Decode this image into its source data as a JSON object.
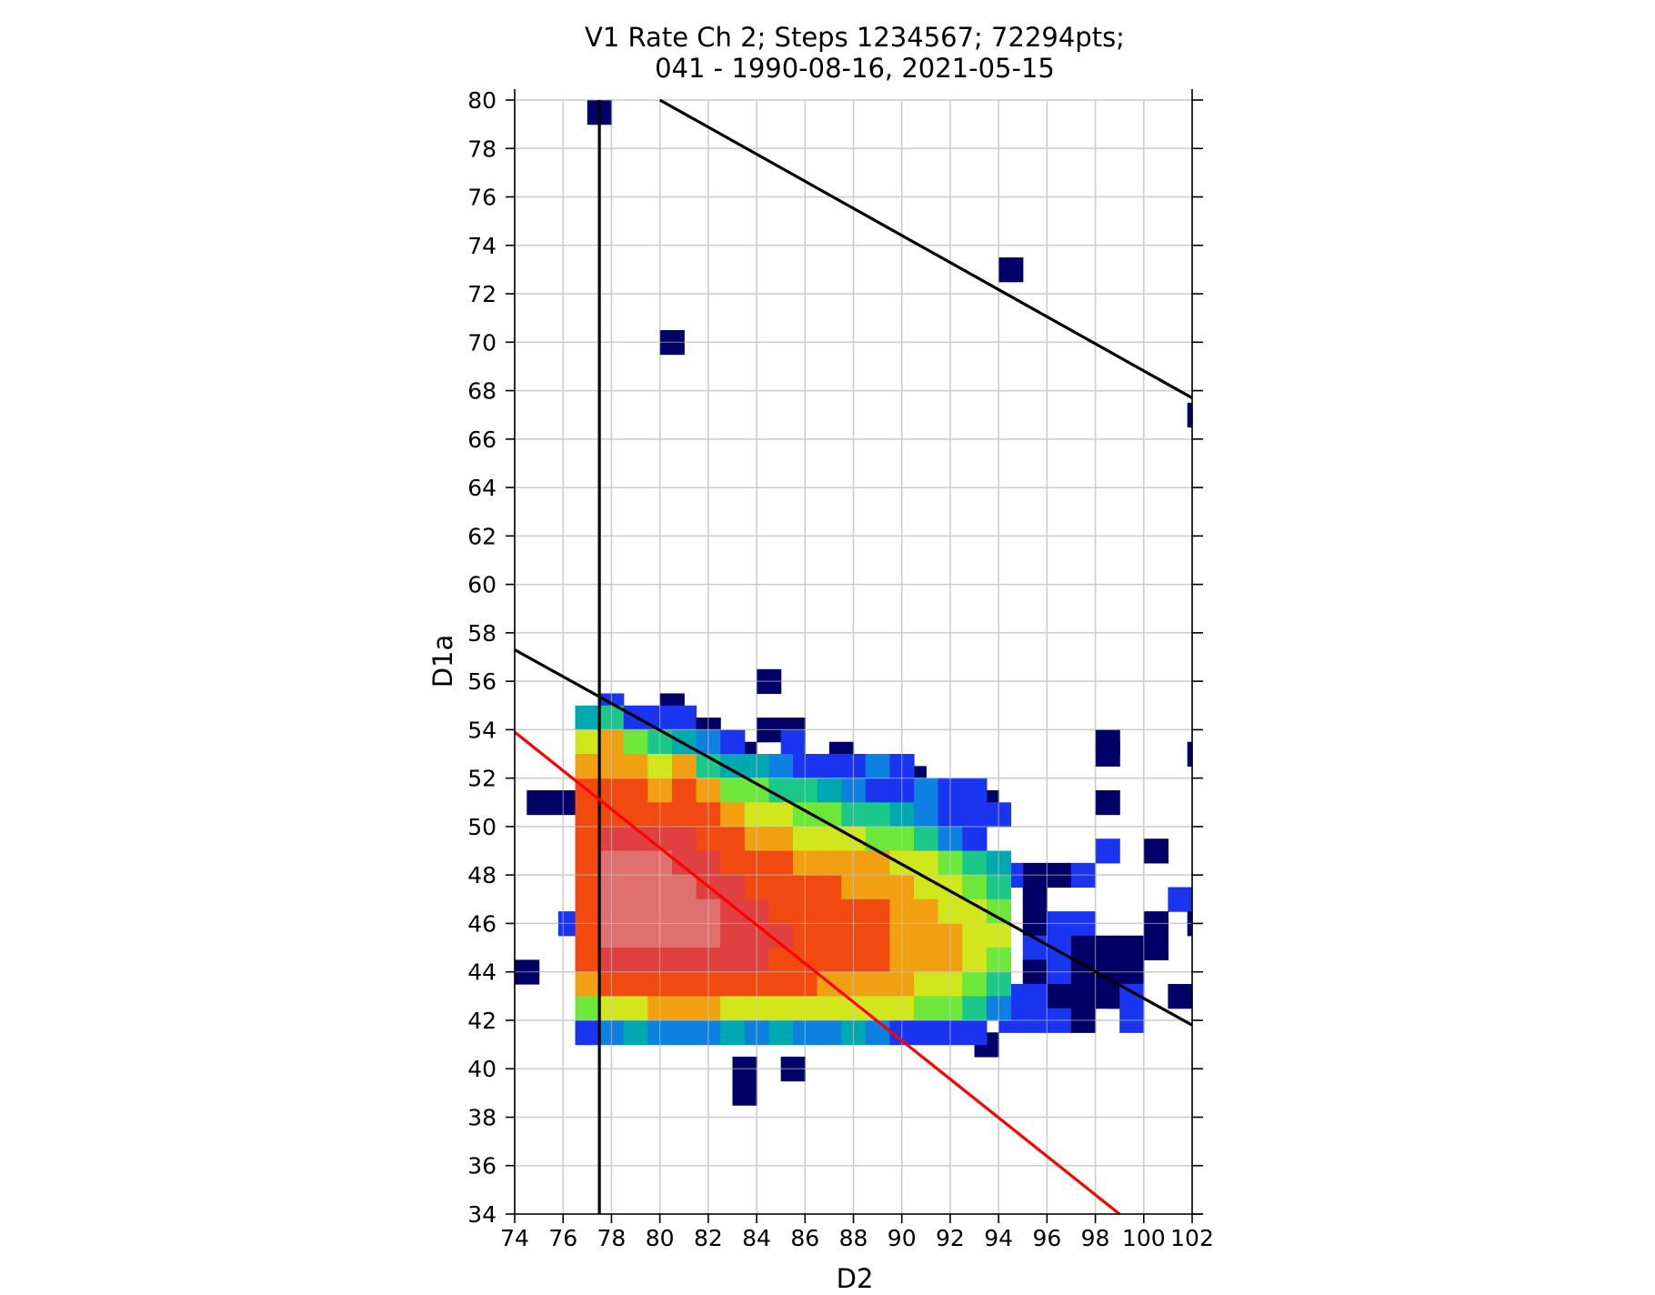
{
  "chart_data": {
    "type": "heatmap",
    "title_line1": "V1 Rate Ch 2; Steps 1234567; 72294pts;",
    "title_line2": "041 - 1990-08-16, 2021-05-15",
    "xlabel": "D2",
    "ylabel": "D1a",
    "xlim": [
      74,
      102
    ],
    "ylim": [
      34,
      80
    ],
    "x_ticks": [
      74,
      76,
      78,
      80,
      82,
      84,
      86,
      88,
      90,
      92,
      94,
      96,
      98,
      100,
      102
    ],
    "y_ticks": [
      34,
      36,
      38,
      40,
      42,
      44,
      46,
      48,
      50,
      52,
      54,
      56,
      58,
      60,
      62,
      64,
      66,
      68,
      70,
      72,
      74,
      76,
      78,
      80
    ],
    "grid": true,
    "colormap": "jet",
    "cell_size": [
      1,
      1
    ],
    "cell_note": "cells: [x_left, y_bottom, color index 0=dark navy .. 8=dark red, 9=pink]",
    "palette": [
      "#000066",
      "#1a35f0",
      "#0e80e0",
      "#00a8b0",
      "#1bc88a",
      "#6de83a",
      "#d2e61c",
      "#f0a010",
      "#f04a10",
      "#e04040",
      "#e07070"
    ],
    "cells": [
      [
        77,
        79,
        0
      ],
      [
        94,
        72.5,
        0
      ],
      [
        80,
        69.5,
        0
      ],
      [
        101.8,
        66.5,
        0
      ],
      [
        84,
        55.5,
        0
      ],
      [
        80,
        54.5,
        0
      ],
      [
        77.5,
        54.5,
        1
      ],
      [
        74,
        43.5,
        0
      ],
      [
        75.5,
        50.5,
        0
      ],
      [
        74.5,
        50.5,
        0
      ],
      [
        75.8,
        45.5,
        1
      ],
      [
        84,
        53.5,
        0
      ],
      [
        85,
        53.5,
        0
      ],
      [
        87,
        52.5,
        0
      ],
      [
        82.5,
        52.5,
        0
      ],
      [
        83,
        52.5,
        0
      ],
      [
        98,
        53,
        0
      ],
      [
        98,
        52.5,
        0
      ],
      [
        101.8,
        52.5,
        0
      ],
      [
        90,
        51.5,
        0
      ],
      [
        89,
        51.5,
        0
      ],
      [
        98,
        50.5,
        0
      ],
      [
        93,
        50.5,
        0
      ],
      [
        98,
        48.5,
        1
      ],
      [
        100,
        48.5,
        0
      ],
      [
        101,
        46.5,
        1
      ],
      [
        100,
        45.5,
        0
      ],
      [
        101.8,
        45.5,
        0
      ],
      [
        100,
        44.5,
        0
      ],
      [
        101,
        42.5,
        0
      ],
      [
        98.5,
        42.5,
        0
      ],
      [
        95,
        47.5,
        0
      ],
      [
        96,
        47.5,
        0
      ],
      [
        97,
        47.5,
        1
      ],
      [
        94,
        47.5,
        1
      ],
      [
        95,
        46.5,
        0
      ],
      [
        95,
        45.5,
        0
      ],
      [
        96,
        45.5,
        1
      ],
      [
        97,
        45.5,
        1
      ],
      [
        96,
        44.5,
        1
      ],
      [
        97,
        44.5,
        0
      ],
      [
        98,
        44.5,
        0
      ],
      [
        99,
        44.5,
        0
      ],
      [
        95,
        44.5,
        1
      ],
      [
        95,
        43.5,
        0
      ],
      [
        96,
        43.5,
        1
      ],
      [
        97,
        43.5,
        0
      ],
      [
        98,
        43.5,
        0
      ],
      [
        99,
        43.5,
        0
      ],
      [
        94,
        42.5,
        1
      ],
      [
        95,
        42.5,
        1
      ],
      [
        96,
        42.5,
        0
      ],
      [
        97,
        42.5,
        0
      ],
      [
        98,
        42.5,
        0
      ],
      [
        99,
        42.5,
        1
      ],
      [
        94,
        41.5,
        1
      ],
      [
        95,
        41.5,
        1
      ],
      [
        96,
        41.5,
        1
      ],
      [
        97,
        41.5,
        0
      ],
      [
        99,
        41.5,
        1
      ],
      [
        93,
        40.5,
        0
      ],
      [
        83,
        39.5,
        0
      ],
      [
        83,
        38.5,
        0
      ],
      [
        85,
        39.5,
        0
      ],
      [
        76.5,
        54,
        3
      ],
      [
        77.5,
        54,
        4
      ],
      [
        78.5,
        54,
        1
      ],
      [
        79.5,
        54,
        1
      ],
      [
        80.5,
        54,
        1
      ],
      [
        81.5,
        53.5,
        0
      ],
      [
        76.5,
        53,
        6
      ],
      [
        77.5,
        53,
        7
      ],
      [
        78.5,
        53,
        5
      ],
      [
        79.5,
        53,
        4
      ],
      [
        80.5,
        53,
        3
      ],
      [
        81.5,
        53,
        2
      ],
      [
        82.5,
        53,
        1
      ],
      [
        85,
        53,
        1
      ],
      [
        76.5,
        52,
        7
      ],
      [
        77.5,
        52,
        7
      ],
      [
        78.5,
        52,
        7
      ],
      [
        79.5,
        52,
        6
      ],
      [
        80.5,
        52,
        7
      ],
      [
        81.5,
        52,
        4
      ],
      [
        82.5,
        52,
        3
      ],
      [
        83.5,
        52,
        3
      ],
      [
        84.5,
        52,
        2
      ],
      [
        85.5,
        52,
        1
      ],
      [
        86.5,
        52,
        1
      ],
      [
        87.5,
        52,
        1
      ],
      [
        88.5,
        52,
        2
      ],
      [
        89.5,
        52,
        1
      ],
      [
        76.5,
        51,
        8
      ],
      [
        77.5,
        51,
        8
      ],
      [
        78.5,
        51,
        8
      ],
      [
        79.5,
        51,
        7
      ],
      [
        80.5,
        51,
        8
      ],
      [
        81.5,
        51,
        7
      ],
      [
        82.5,
        51,
        5
      ],
      [
        83.5,
        51,
        5
      ],
      [
        84.5,
        51,
        4
      ],
      [
        85.5,
        51,
        4
      ],
      [
        86.5,
        51,
        3
      ],
      [
        87.5,
        51,
        2
      ],
      [
        88.5,
        51,
        1
      ],
      [
        89.5,
        51,
        1
      ],
      [
        90.5,
        51,
        2
      ],
      [
        91.5,
        51,
        1
      ],
      [
        92.5,
        51,
        1
      ],
      [
        76.5,
        50,
        8
      ],
      [
        77.5,
        50,
        8
      ],
      [
        78.5,
        50,
        8
      ],
      [
        79.5,
        50,
        8
      ],
      [
        80.5,
        50,
        8
      ],
      [
        81.5,
        50,
        8
      ],
      [
        82.5,
        50,
        7
      ],
      [
        83.5,
        50,
        6
      ],
      [
        84.5,
        50,
        6
      ],
      [
        85.5,
        50,
        5
      ],
      [
        86.5,
        50,
        5
      ],
      [
        87.5,
        50,
        4
      ],
      [
        88.5,
        50,
        4
      ],
      [
        89.5,
        50,
        3
      ],
      [
        90.5,
        50,
        2
      ],
      [
        91.5,
        50,
        1
      ],
      [
        92.5,
        50,
        1
      ],
      [
        93.5,
        50,
        1
      ],
      [
        76.5,
        49,
        8
      ],
      [
        77.5,
        49,
        9
      ],
      [
        78.5,
        49,
        9
      ],
      [
        79.5,
        49,
        9
      ],
      [
        80.5,
        49,
        9
      ],
      [
        81.5,
        49,
        8
      ],
      [
        82.5,
        49,
        8
      ],
      [
        83.5,
        49,
        7
      ],
      [
        84.5,
        49,
        7
      ],
      [
        85.5,
        49,
        6
      ],
      [
        86.5,
        49,
        6
      ],
      [
        87.5,
        49,
        6
      ],
      [
        88.5,
        49,
        5
      ],
      [
        89.5,
        49,
        5
      ],
      [
        90.5,
        49,
        4
      ],
      [
        91.5,
        49,
        2
      ],
      [
        92.5,
        49,
        1
      ],
      [
        76.5,
        48,
        8
      ],
      [
        77.5,
        48,
        10
      ],
      [
        78.5,
        48,
        10
      ],
      [
        79.5,
        48,
        10
      ],
      [
        80.5,
        48,
        9
      ],
      [
        81.5,
        48,
        9
      ],
      [
        82.5,
        48,
        8
      ],
      [
        83.5,
        48,
        8
      ],
      [
        84.5,
        48,
        8
      ],
      [
        85.5,
        48,
        7
      ],
      [
        86.5,
        48,
        7
      ],
      [
        87.5,
        48,
        7
      ],
      [
        88.5,
        48,
        7
      ],
      [
        89.5,
        48,
        6
      ],
      [
        90.5,
        48,
        6
      ],
      [
        91.5,
        48,
        5
      ],
      [
        92.5,
        48,
        4
      ],
      [
        93.5,
        48,
        3
      ],
      [
        76.5,
        47,
        8
      ],
      [
        77.5,
        47,
        10
      ],
      [
        78.5,
        47,
        10
      ],
      [
        79.5,
        47,
        10
      ],
      [
        80.5,
        47,
        10
      ],
      [
        81.5,
        47,
        9
      ],
      [
        82.5,
        47,
        9
      ],
      [
        83.5,
        47,
        8
      ],
      [
        84.5,
        47,
        8
      ],
      [
        85.5,
        47,
        8
      ],
      [
        86.5,
        47,
        8
      ],
      [
        87.5,
        47,
        7
      ],
      [
        88.5,
        47,
        7
      ],
      [
        89.5,
        47,
        7
      ],
      [
        90.5,
        47,
        6
      ],
      [
        91.5,
        47,
        6
      ],
      [
        92.5,
        47,
        5
      ],
      [
        93.5,
        47,
        4
      ],
      [
        76.5,
        46,
        8
      ],
      [
        77.5,
        46,
        10
      ],
      [
        78.5,
        46,
        10
      ],
      [
        79.5,
        46,
        10
      ],
      [
        80.5,
        46,
        10
      ],
      [
        81.5,
        46,
        10
      ],
      [
        82.5,
        46,
        9
      ],
      [
        83.5,
        46,
        9
      ],
      [
        84.5,
        46,
        8
      ],
      [
        85.5,
        46,
        8
      ],
      [
        86.5,
        46,
        8
      ],
      [
        87.5,
        46,
        8
      ],
      [
        88.5,
        46,
        8
      ],
      [
        89.5,
        46,
        7
      ],
      [
        90.5,
        46,
        7
      ],
      [
        91.5,
        46,
        6
      ],
      [
        92.5,
        46,
        6
      ],
      [
        93.5,
        46,
        5
      ],
      [
        76.5,
        45,
        8
      ],
      [
        77.5,
        45,
        10
      ],
      [
        78.5,
        45,
        10
      ],
      [
        79.5,
        45,
        10
      ],
      [
        80.5,
        45,
        10
      ],
      [
        81.5,
        45,
        10
      ],
      [
        82.5,
        45,
        9
      ],
      [
        83.5,
        45,
        9
      ],
      [
        84.5,
        45,
        9
      ],
      [
        85.5,
        45,
        8
      ],
      [
        86.5,
        45,
        8
      ],
      [
        87.5,
        45,
        8
      ],
      [
        88.5,
        45,
        8
      ],
      [
        89.5,
        45,
        7
      ],
      [
        90.5,
        45,
        7
      ],
      [
        91.5,
        45,
        7
      ],
      [
        92.5,
        45,
        6
      ],
      [
        93.5,
        45,
        6
      ],
      [
        76.5,
        44,
        8
      ],
      [
        77.5,
        44,
        9
      ],
      [
        78.5,
        44,
        9
      ],
      [
        79.5,
        44,
        9
      ],
      [
        80.5,
        44,
        9
      ],
      [
        81.5,
        44,
        9
      ],
      [
        82.5,
        44,
        9
      ],
      [
        83.5,
        44,
        9
      ],
      [
        84.5,
        44,
        8
      ],
      [
        85.5,
        44,
        8
      ],
      [
        86.5,
        44,
        8
      ],
      [
        87.5,
        44,
        8
      ],
      [
        88.5,
        44,
        8
      ],
      [
        89.5,
        44,
        7
      ],
      [
        90.5,
        44,
        7
      ],
      [
        91.5,
        44,
        7
      ],
      [
        92.5,
        44,
        6
      ],
      [
        93.5,
        44,
        5
      ],
      [
        76.5,
        43,
        7
      ],
      [
        77.5,
        43,
        8
      ],
      [
        78.5,
        43,
        8
      ],
      [
        79.5,
        43,
        8
      ],
      [
        80.5,
        43,
        8
      ],
      [
        81.5,
        43,
        8
      ],
      [
        82.5,
        43,
        8
      ],
      [
        83.5,
        43,
        8
      ],
      [
        84.5,
        43,
        8
      ],
      [
        85.5,
        43,
        8
      ],
      [
        86.5,
        43,
        7
      ],
      [
        87.5,
        43,
        7
      ],
      [
        88.5,
        43,
        7
      ],
      [
        89.5,
        43,
        7
      ],
      [
        90.5,
        43,
        6
      ],
      [
        91.5,
        43,
        6
      ],
      [
        92.5,
        43,
        5
      ],
      [
        93.5,
        43,
        4
      ],
      [
        76.5,
        42,
        5
      ],
      [
        77.5,
        42,
        6
      ],
      [
        78.5,
        42,
        6
      ],
      [
        79.5,
        42,
        7
      ],
      [
        80.5,
        42,
        7
      ],
      [
        81.5,
        42,
        7
      ],
      [
        82.5,
        42,
        6
      ],
      [
        83.5,
        42,
        6
      ],
      [
        84.5,
        42,
        6
      ],
      [
        85.5,
        42,
        6
      ],
      [
        86.5,
        42,
        6
      ],
      [
        87.5,
        42,
        6
      ],
      [
        88.5,
        42,
        6
      ],
      [
        89.5,
        42,
        6
      ],
      [
        90.5,
        42,
        5
      ],
      [
        91.5,
        42,
        5
      ],
      [
        92.5,
        42,
        4
      ],
      [
        93.5,
        42,
        2
      ],
      [
        76.5,
        41,
        1
      ],
      [
        77.5,
        41,
        2
      ],
      [
        78.5,
        41,
        3
      ],
      [
        79.5,
        41,
        2
      ],
      [
        80.5,
        41,
        2
      ],
      [
        81.5,
        41,
        2
      ],
      [
        82.5,
        41,
        3
      ],
      [
        83.5,
        41,
        2
      ],
      [
        84.5,
        41,
        3
      ],
      [
        85.5,
        41,
        2
      ],
      [
        86.5,
        41,
        2
      ],
      [
        87.5,
        41,
        3
      ],
      [
        88.5,
        41,
        2
      ],
      [
        89.5,
        41,
        1
      ],
      [
        90.5,
        41,
        1
      ],
      [
        91.5,
        41,
        1
      ],
      [
        92.5,
        41,
        1
      ]
    ],
    "lines": [
      {
        "color": "#000000",
        "points": [
          [
            77.5,
            34
          ],
          [
            77.5,
            80
          ]
        ]
      },
      {
        "color": "#000000",
        "points": [
          [
            80,
            80
          ],
          [
            102,
            67.7
          ]
        ]
      },
      {
        "color": "#000000",
        "points": [
          [
            74,
            57.3
          ],
          [
            102,
            41.8
          ]
        ]
      },
      {
        "color": "#ff0000",
        "points": [
          [
            74,
            53.9
          ],
          [
            99,
            34
          ]
        ]
      }
    ]
  }
}
